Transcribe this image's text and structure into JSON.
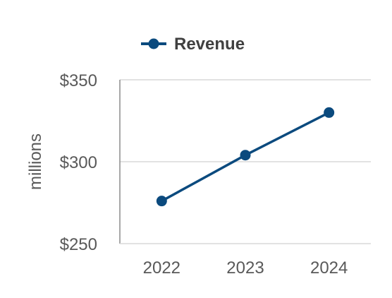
{
  "chart_data": {
    "type": "line",
    "title": "",
    "xlabel": "",
    "ylabel": "millions",
    "categories": [
      "2022",
      "2023",
      "2024"
    ],
    "series": [
      {
        "name": "Revenue",
        "values": [
          276,
          304,
          330
        ],
        "color": "#0B4A7E"
      }
    ],
    "ylim": [
      250,
      350
    ],
    "yticks": [
      250,
      300,
      350
    ],
    "ytick_labels": [
      "$250",
      "$300",
      "$350"
    ],
    "grid": true,
    "legend": "top"
  }
}
